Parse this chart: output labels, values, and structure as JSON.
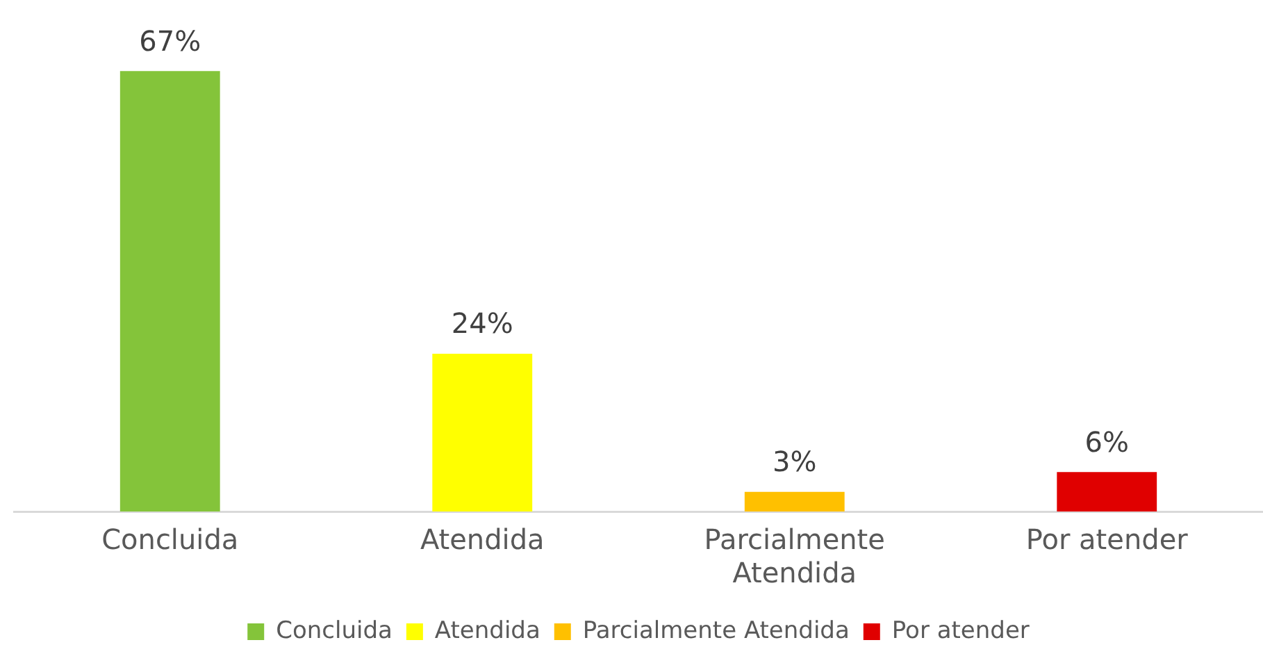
{
  "chart_data": {
    "type": "bar",
    "categories": [
      "Concluida",
      "Atendida",
      "Parcialmente Atendida",
      "Por atender"
    ],
    "series": [
      {
        "name": "Concluida",
        "color": "#84c43a",
        "values": [
          67,
          null,
          null,
          null
        ],
        "value_labels": [
          "67%",
          null,
          null,
          null
        ]
      },
      {
        "name": "Atendida",
        "color": "#ffff00",
        "values": [
          null,
          24,
          null,
          null
        ],
        "value_labels": [
          null,
          "24%",
          null,
          null
        ]
      },
      {
        "name": "Parcialmente Atendida",
        "color": "#ffc000",
        "values": [
          null,
          null,
          3,
          null
        ],
        "value_labels": [
          null,
          null,
          "3%",
          null
        ]
      },
      {
        "name": "Por atender",
        "color": "#e00000",
        "values": [
          null,
          null,
          null,
          6
        ],
        "value_labels": [
          null,
          null,
          null,
          "6%"
        ]
      }
    ],
    "legend": "bottom",
    "grid": false
  }
}
